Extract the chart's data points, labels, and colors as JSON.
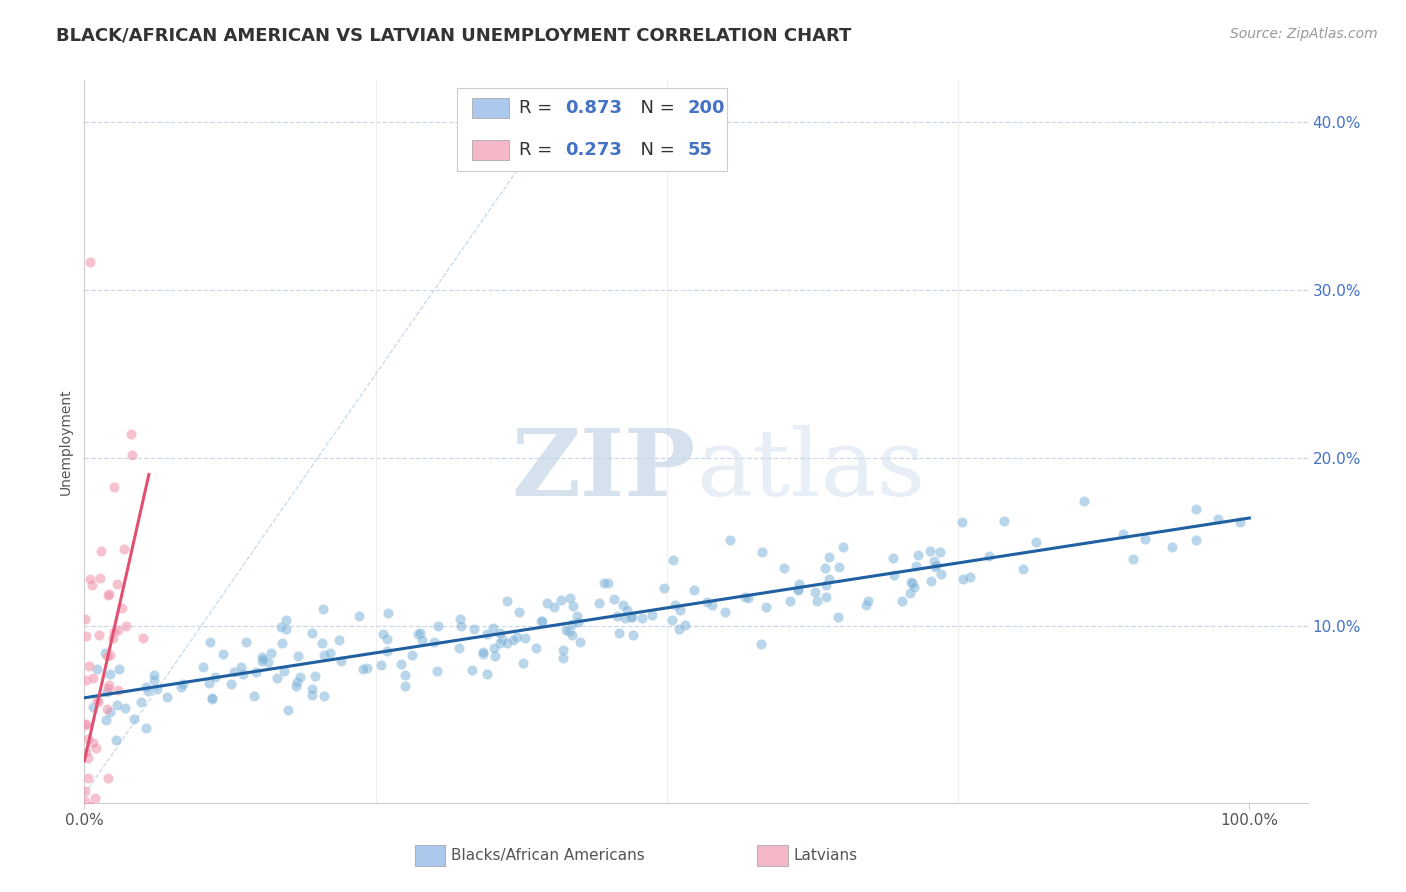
{
  "title": "BLACK/AFRICAN AMERICAN VS LATVIAN UNEMPLOYMENT CORRELATION CHART",
  "source_text": "Source: ZipAtlas.com",
  "ylabel_label": "Unemployment",
  "watermark_zip": "ZIP",
  "watermark_atlas": "atlas",
  "blue_R": 0.873,
  "blue_N": 200,
  "pink_R": 0.273,
  "pink_N": 55,
  "blue_color": "#7fb3d9",
  "blue_line_color": "#2060a0",
  "pink_color": "#f090aa",
  "pink_line_color": "#e05070",
  "legend_blue_face": "#adc8ed",
  "legend_pink_face": "#f5b8c8",
  "grid_color": "#c8d8ea",
  "background_color": "#ffffff",
  "scatter_alpha": 0.55,
  "scatter_size": 55,
  "xlim": [
    0.0,
    1.05
  ],
  "ylim": [
    -0.005,
    0.425
  ],
  "yticks": [
    0.1,
    0.2,
    0.3,
    0.4
  ],
  "ytick_labels": [
    "10.0%",
    "20.0%",
    "30.0%",
    "40.0%"
  ],
  "xticks": [
    0.0,
    1.0
  ],
  "xtick_labels": [
    "0.0%",
    "100.0%"
  ],
  "legend_labels": [
    "Blacks/African Americans",
    "Latvians"
  ],
  "title_fontsize": 13,
  "label_fontsize": 10,
  "tick_fontsize": 11,
  "source_fontsize": 10
}
